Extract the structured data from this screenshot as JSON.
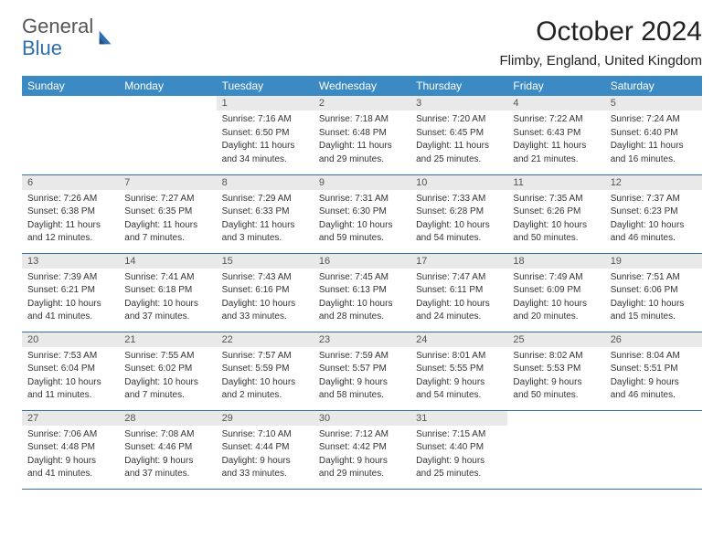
{
  "logo": {
    "word1": "General",
    "word2": "Blue"
  },
  "header": {
    "month_title": "October 2024",
    "location": "Flimby, England, United Kingdom"
  },
  "colors": {
    "header_bg": "#3b8ac4",
    "rule": "#2f6fb0",
    "daynum_bg": "#e9e9e9",
    "text": "#333333"
  },
  "day_headers": [
    "Sunday",
    "Monday",
    "Tuesday",
    "Wednesday",
    "Thursday",
    "Friday",
    "Saturday"
  ],
  "weeks": [
    [
      {
        "empty": true
      },
      {
        "empty": true
      },
      {
        "n": "1",
        "sunrise": "Sunrise: 7:16 AM",
        "sunset": "Sunset: 6:50 PM",
        "day1": "Daylight: 11 hours",
        "day2": "and 34 minutes."
      },
      {
        "n": "2",
        "sunrise": "Sunrise: 7:18 AM",
        "sunset": "Sunset: 6:48 PM",
        "day1": "Daylight: 11 hours",
        "day2": "and 29 minutes."
      },
      {
        "n": "3",
        "sunrise": "Sunrise: 7:20 AM",
        "sunset": "Sunset: 6:45 PM",
        "day1": "Daylight: 11 hours",
        "day2": "and 25 minutes."
      },
      {
        "n": "4",
        "sunrise": "Sunrise: 7:22 AM",
        "sunset": "Sunset: 6:43 PM",
        "day1": "Daylight: 11 hours",
        "day2": "and 21 minutes."
      },
      {
        "n": "5",
        "sunrise": "Sunrise: 7:24 AM",
        "sunset": "Sunset: 6:40 PM",
        "day1": "Daylight: 11 hours",
        "day2": "and 16 minutes."
      }
    ],
    [
      {
        "n": "6",
        "sunrise": "Sunrise: 7:26 AM",
        "sunset": "Sunset: 6:38 PM",
        "day1": "Daylight: 11 hours",
        "day2": "and 12 minutes."
      },
      {
        "n": "7",
        "sunrise": "Sunrise: 7:27 AM",
        "sunset": "Sunset: 6:35 PM",
        "day1": "Daylight: 11 hours",
        "day2": "and 7 minutes."
      },
      {
        "n": "8",
        "sunrise": "Sunrise: 7:29 AM",
        "sunset": "Sunset: 6:33 PM",
        "day1": "Daylight: 11 hours",
        "day2": "and 3 minutes."
      },
      {
        "n": "9",
        "sunrise": "Sunrise: 7:31 AM",
        "sunset": "Sunset: 6:30 PM",
        "day1": "Daylight: 10 hours",
        "day2": "and 59 minutes."
      },
      {
        "n": "10",
        "sunrise": "Sunrise: 7:33 AM",
        "sunset": "Sunset: 6:28 PM",
        "day1": "Daylight: 10 hours",
        "day2": "and 54 minutes."
      },
      {
        "n": "11",
        "sunrise": "Sunrise: 7:35 AM",
        "sunset": "Sunset: 6:26 PM",
        "day1": "Daylight: 10 hours",
        "day2": "and 50 minutes."
      },
      {
        "n": "12",
        "sunrise": "Sunrise: 7:37 AM",
        "sunset": "Sunset: 6:23 PM",
        "day1": "Daylight: 10 hours",
        "day2": "and 46 minutes."
      }
    ],
    [
      {
        "n": "13",
        "sunrise": "Sunrise: 7:39 AM",
        "sunset": "Sunset: 6:21 PM",
        "day1": "Daylight: 10 hours",
        "day2": "and 41 minutes."
      },
      {
        "n": "14",
        "sunrise": "Sunrise: 7:41 AM",
        "sunset": "Sunset: 6:18 PM",
        "day1": "Daylight: 10 hours",
        "day2": "and 37 minutes."
      },
      {
        "n": "15",
        "sunrise": "Sunrise: 7:43 AM",
        "sunset": "Sunset: 6:16 PM",
        "day1": "Daylight: 10 hours",
        "day2": "and 33 minutes."
      },
      {
        "n": "16",
        "sunrise": "Sunrise: 7:45 AM",
        "sunset": "Sunset: 6:13 PM",
        "day1": "Daylight: 10 hours",
        "day2": "and 28 minutes."
      },
      {
        "n": "17",
        "sunrise": "Sunrise: 7:47 AM",
        "sunset": "Sunset: 6:11 PM",
        "day1": "Daylight: 10 hours",
        "day2": "and 24 minutes."
      },
      {
        "n": "18",
        "sunrise": "Sunrise: 7:49 AM",
        "sunset": "Sunset: 6:09 PM",
        "day1": "Daylight: 10 hours",
        "day2": "and 20 minutes."
      },
      {
        "n": "19",
        "sunrise": "Sunrise: 7:51 AM",
        "sunset": "Sunset: 6:06 PM",
        "day1": "Daylight: 10 hours",
        "day2": "and 15 minutes."
      }
    ],
    [
      {
        "n": "20",
        "sunrise": "Sunrise: 7:53 AM",
        "sunset": "Sunset: 6:04 PM",
        "day1": "Daylight: 10 hours",
        "day2": "and 11 minutes."
      },
      {
        "n": "21",
        "sunrise": "Sunrise: 7:55 AM",
        "sunset": "Sunset: 6:02 PM",
        "day1": "Daylight: 10 hours",
        "day2": "and 7 minutes."
      },
      {
        "n": "22",
        "sunrise": "Sunrise: 7:57 AM",
        "sunset": "Sunset: 5:59 PM",
        "day1": "Daylight: 10 hours",
        "day2": "and 2 minutes."
      },
      {
        "n": "23",
        "sunrise": "Sunrise: 7:59 AM",
        "sunset": "Sunset: 5:57 PM",
        "day1": "Daylight: 9 hours",
        "day2": "and 58 minutes."
      },
      {
        "n": "24",
        "sunrise": "Sunrise: 8:01 AM",
        "sunset": "Sunset: 5:55 PM",
        "day1": "Daylight: 9 hours",
        "day2": "and 54 minutes."
      },
      {
        "n": "25",
        "sunrise": "Sunrise: 8:02 AM",
        "sunset": "Sunset: 5:53 PM",
        "day1": "Daylight: 9 hours",
        "day2": "and 50 minutes."
      },
      {
        "n": "26",
        "sunrise": "Sunrise: 8:04 AM",
        "sunset": "Sunset: 5:51 PM",
        "day1": "Daylight: 9 hours",
        "day2": "and 46 minutes."
      }
    ],
    [
      {
        "n": "27",
        "sunrise": "Sunrise: 7:06 AM",
        "sunset": "Sunset: 4:48 PM",
        "day1": "Daylight: 9 hours",
        "day2": "and 41 minutes."
      },
      {
        "n": "28",
        "sunrise": "Sunrise: 7:08 AM",
        "sunset": "Sunset: 4:46 PM",
        "day1": "Daylight: 9 hours",
        "day2": "and 37 minutes."
      },
      {
        "n": "29",
        "sunrise": "Sunrise: 7:10 AM",
        "sunset": "Sunset: 4:44 PM",
        "day1": "Daylight: 9 hours",
        "day2": "and 33 minutes."
      },
      {
        "n": "30",
        "sunrise": "Sunrise: 7:12 AM",
        "sunset": "Sunset: 4:42 PM",
        "day1": "Daylight: 9 hours",
        "day2": "and 29 minutes."
      },
      {
        "n": "31",
        "sunrise": "Sunrise: 7:15 AM",
        "sunset": "Sunset: 4:40 PM",
        "day1": "Daylight: 9 hours",
        "day2": "and 25 minutes."
      },
      {
        "empty": true
      },
      {
        "empty": true
      }
    ]
  ]
}
